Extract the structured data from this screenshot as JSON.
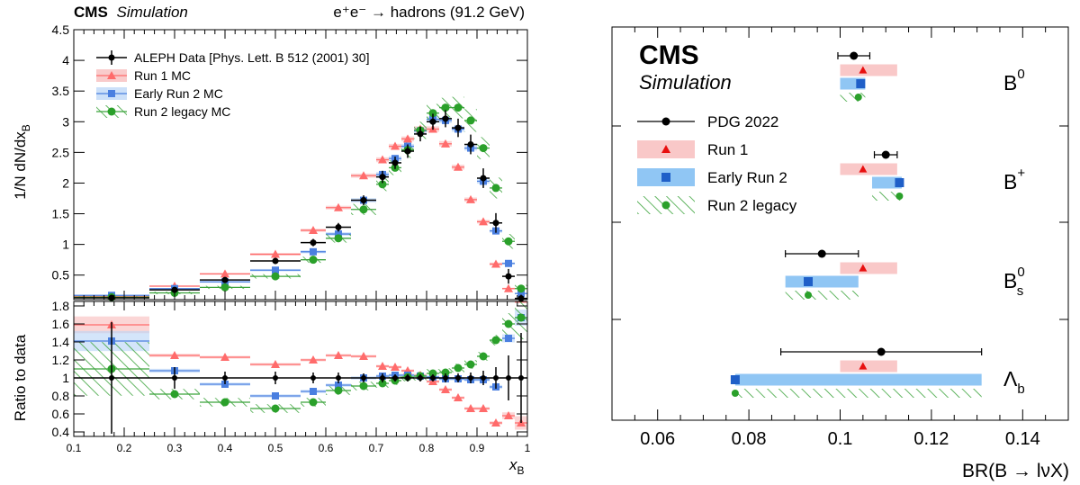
{
  "colors": {
    "data": "#000000",
    "run1": "#ff6b6b",
    "run1_fill": "#f7b5b5",
    "early": "#4a7fe0",
    "early_fill": "#b7d3f6",
    "early_marker": "#1f5fc8",
    "legacy": "#3ba33b",
    "legacy_marker": "#2aa02a"
  },
  "chart_data": [
    {
      "id": "fragmentation",
      "type": "line",
      "header_left_bold": "CMS",
      "header_left_italic": "Simulation",
      "header_right": "e⁺e⁻ → hadrons (91.2 GeV)",
      "xlabel_main": "x",
      "xlabel_sub": "B",
      "ylabel_top": "1/N dN/dx",
      "ylabel_top_sub": "B",
      "ylabel_bottom": "Ratio to data",
      "xlim": [
        0.1,
        1.0
      ],
      "ylim_top": [
        0.1,
        4.5
      ],
      "ylim_bottom": [
        0.35,
        1.85
      ],
      "x_ticks": [
        "0.1",
        "0.2",
        "0.3",
        "0.4",
        "0.5",
        "0.6",
        "0.7",
        "0.8",
        "0.9",
        "1"
      ],
      "y_ticks_top": [
        "0.5",
        "1",
        "1.5",
        "2",
        "2.5",
        "3",
        "3.5",
        "4",
        "4.5"
      ],
      "y_ticks_bottom": [
        "0.4",
        "0.6",
        "0.8",
        "1",
        "1.2",
        "1.4",
        "1.6",
        "1.8"
      ],
      "legend": [
        {
          "key": "data",
          "label": "ALEPH Data [Phys. Lett. B 512 (2001) 30]"
        },
        {
          "key": "run1",
          "label": "Run 1 MC"
        },
        {
          "key": "early",
          "label": "Early Run 2 MC"
        },
        {
          "key": "legacy",
          "label": "Run 2 legacy MC"
        }
      ],
      "bin_edges": [
        0.1,
        0.25,
        0.35,
        0.45,
        0.55,
        0.6,
        0.65,
        0.7,
        0.725,
        0.75,
        0.775,
        0.8,
        0.825,
        0.85,
        0.875,
        0.9,
        0.925,
        0.95,
        0.975,
        1.0
      ],
      "data": {
        "y": [
          0.13,
          0.26,
          0.42,
          0.73,
          1.03,
          1.28,
          1.72,
          2.1,
          2.33,
          2.52,
          2.8,
          3.0,
          3.05,
          2.9,
          2.63,
          2.08,
          1.35,
          0.48,
          0.12
        ],
        "err": [
          0.02,
          0.03,
          0.03,
          0.05,
          0.06,
          0.07,
          0.08,
          0.1,
          0.1,
          0.11,
          0.12,
          0.13,
          0.14,
          0.15,
          0.16,
          0.16,
          0.16,
          0.12,
          0.06
        ]
      },
      "run1": {
        "y": [
          0.155,
          0.32,
          0.52,
          0.84,
          1.23,
          1.6,
          2.12,
          2.38,
          2.6,
          2.72,
          2.88,
          2.88,
          2.64,
          2.26,
          1.73,
          1.37,
          0.68,
          0.28,
          0.06
        ],
        "width": [
          0.02,
          0.02,
          0.03,
          0.04,
          0.05,
          0.06,
          0.07,
          0.08,
          0.08,
          0.08,
          0.09,
          0.09,
          0.09,
          0.08,
          0.07,
          0.06,
          0.05,
          0.03,
          0.02
        ]
      },
      "early": {
        "y": [
          0.17,
          0.28,
          0.39,
          0.58,
          0.88,
          1.17,
          1.72,
          2.14,
          2.4,
          2.6,
          2.85,
          3.04,
          3.02,
          2.88,
          2.57,
          2.03,
          1.22,
          0.69,
          0.2
        ],
        "width": [
          0.02,
          0.02,
          0.03,
          0.04,
          0.05,
          0.06,
          0.07,
          0.08,
          0.08,
          0.08,
          0.09,
          0.09,
          0.09,
          0.09,
          0.08,
          0.08,
          0.06,
          0.04,
          0.02
        ]
      },
      "legacy": {
        "y": [
          0.14,
          0.21,
          0.3,
          0.48,
          0.75,
          1.1,
          1.57,
          1.98,
          2.25,
          2.54,
          2.86,
          3.14,
          3.23,
          3.23,
          3.02,
          2.57,
          1.92,
          1.05,
          0.28
        ],
        "width": [
          0.03,
          0.04,
          0.05,
          0.07,
          0.1,
          0.14,
          0.18,
          0.22,
          0.24,
          0.26,
          0.28,
          0.3,
          0.32,
          0.35,
          0.37,
          0.36,
          0.34,
          0.24,
          0.12
        ]
      },
      "ratio": {
        "data_err": [
          0.62,
          0.12,
          0.07,
          0.07,
          0.06,
          0.06,
          0.05,
          0.05,
          0.04,
          0.04,
          0.04,
          0.04,
          0.05,
          0.05,
          0.06,
          0.08,
          0.12,
          0.25,
          0.5
        ],
        "run1": [
          1.59,
          1.25,
          1.23,
          1.15,
          1.2,
          1.25,
          1.24,
          1.13,
          1.12,
          1.08,
          1.03,
          0.96,
          0.87,
          0.78,
          0.66,
          0.66,
          0.5,
          0.58,
          0.5
        ],
        "early": [
          1.41,
          1.08,
          0.93,
          0.8,
          0.85,
          0.92,
          1.0,
          1.02,
          1.03,
          1.03,
          1.02,
          1.01,
          0.99,
          0.99,
          0.98,
          0.98,
          0.9,
          1.44,
          1.67
        ],
        "legacy": [
          1.1,
          0.82,
          0.73,
          0.66,
          0.73,
          0.86,
          0.91,
          0.94,
          0.97,
          1.01,
          1.02,
          1.05,
          1.06,
          1.11,
          1.15,
          1.24,
          1.42,
          1.6,
          1.67
        ]
      }
    },
    {
      "id": "branching-ratios",
      "type": "scatter",
      "header_bold": "CMS",
      "header_italic": "Simulation",
      "xlabel": "BR(B → lνX)",
      "xlim": [
        0.05,
        0.15
      ],
      "x_ticks": [
        "0.06",
        "0.08",
        "0.1",
        "0.12",
        "0.14"
      ],
      "legend": [
        {
          "key": "pdg",
          "label": "PDG 2022"
        },
        {
          "key": "run1",
          "label": "Run 1"
        },
        {
          "key": "early",
          "label": "Early Run 2"
        },
        {
          "key": "legacy",
          "label": "Run 2 legacy"
        }
      ],
      "hadrons": [
        {
          "label": "B",
          "sup": "0",
          "sub": "",
          "pdg": 0.103,
          "pdg_err": 0.0035,
          "run1": 0.105,
          "run1_band": [
            0.1,
            0.1125
          ],
          "early": 0.1045,
          "early_band": [
            0.1,
            0.1055
          ],
          "legacy": 0.104,
          "legacy_band": [
            0.1,
            0.1055
          ]
        },
        {
          "label": "B",
          "sup": "+",
          "sub": "",
          "pdg": 0.11,
          "pdg_err": 0.0025,
          "run1": 0.105,
          "run1_band": [
            0.1,
            0.1125
          ],
          "early": 0.113,
          "early_band": [
            0.107,
            0.1135
          ],
          "legacy": 0.113,
          "legacy_band": [
            0.107,
            0.1135
          ]
        },
        {
          "label": "B",
          "sup": "0",
          "sub": "s",
          "pdg": 0.096,
          "pdg_err": 0.008,
          "run1": 0.105,
          "run1_band": [
            0.1,
            0.1125
          ],
          "early": 0.093,
          "early_band": [
            0.088,
            0.104
          ],
          "legacy": 0.093,
          "legacy_band": [
            0.088,
            0.104
          ]
        },
        {
          "label": "Λ",
          "sup": "",
          "sub": "b",
          "pdg": 0.109,
          "pdg_err": 0.022,
          "run1": 0.105,
          "run1_band": [
            0.1,
            0.1125
          ],
          "early": 0.077,
          "early_band": [
            0.077,
            0.131
          ],
          "legacy": 0.077,
          "legacy_band": [
            0.077,
            0.131
          ]
        }
      ]
    }
  ]
}
